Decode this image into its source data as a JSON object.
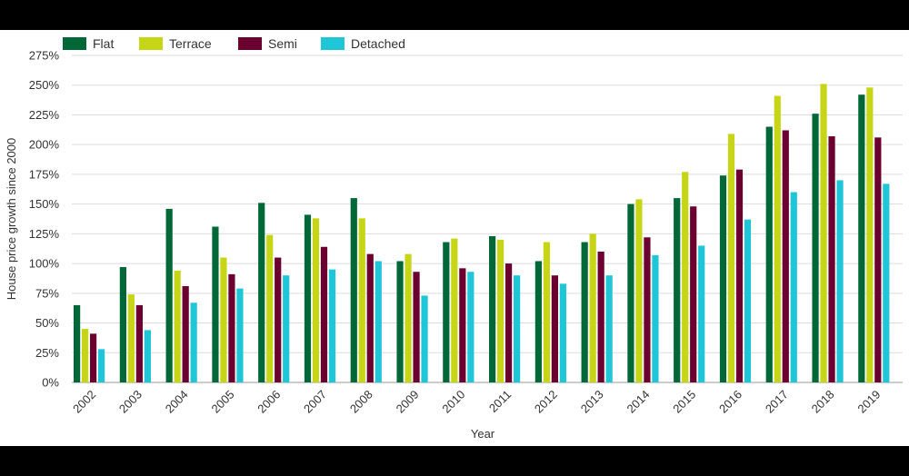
{
  "chart_data": {
    "type": "bar",
    "title": "",
    "xlabel": "Year",
    "ylabel": "House price growth since 2000",
    "ylim": [
      0,
      275
    ],
    "y_ticks": [
      0,
      25,
      50,
      75,
      100,
      125,
      150,
      175,
      200,
      225,
      250,
      275
    ],
    "y_tick_suffix": "%",
    "grid": true,
    "legend_position": "top-left",
    "categories": [
      "2002",
      "2003",
      "2004",
      "2005",
      "2006",
      "2007",
      "2008",
      "2009",
      "2010",
      "2011",
      "2012",
      "2013",
      "2014",
      "2015",
      "2016",
      "2017",
      "2018",
      "2019"
    ],
    "series": [
      {
        "name": "Flat",
        "color": "#006837",
        "values": [
          65,
          97,
          146,
          131,
          151,
          141,
          155,
          102,
          118,
          123,
          102,
          118,
          150,
          155,
          174,
          215,
          226,
          242
        ]
      },
      {
        "name": "Terrace",
        "color": "#c6d616",
        "values": [
          45,
          74,
          94,
          105,
          124,
          138,
          138,
          108,
          121,
          120,
          118,
          125,
          154,
          177,
          209,
          241,
          251,
          248
        ]
      },
      {
        "name": "Semi",
        "color": "#6b0030",
        "values": [
          41,
          65,
          81,
          91,
          105,
          114,
          108,
          93,
          96,
          100,
          90,
          110,
          122,
          148,
          179,
          212,
          207,
          206
        ]
      },
      {
        "name": "Detached",
        "color": "#1fc6d8",
        "values": [
          28,
          44,
          67,
          79,
          90,
          95,
          102,
          73,
          93,
          90,
          83,
          90,
          107,
          115,
          137,
          160,
          170,
          167
        ]
      }
    ]
  }
}
